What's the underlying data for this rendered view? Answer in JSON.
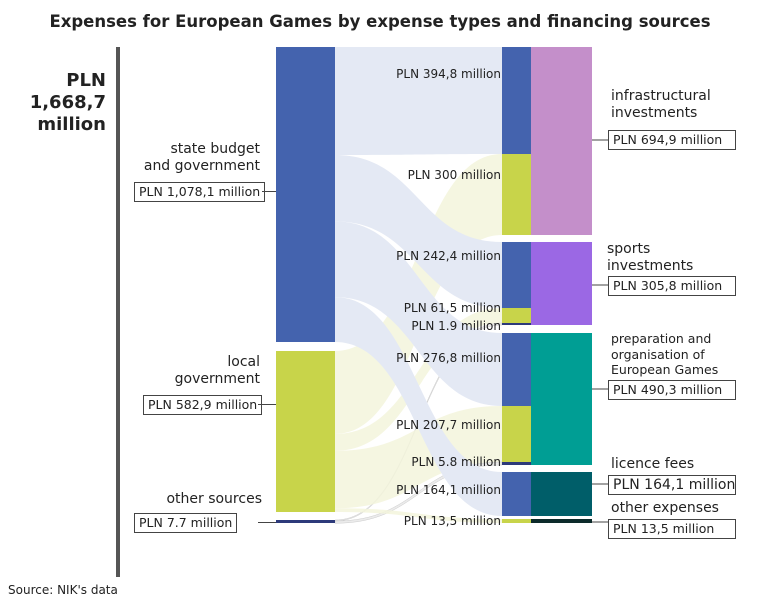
{
  "title": "Expenses for European Games by expense types and financing sources",
  "total": "PLN 1,668,7 million",
  "source": "Source: NIK's data",
  "sources": [
    {
      "label": "state budget and government",
      "value": "PLN 1,078,1 million",
      "amount": 1078.1,
      "color": "#4463ae",
      "flow_color": "#e4e9f4"
    },
    {
      "label": "local government",
      "value": "PLN 582,9 million",
      "amount": 582.9,
      "color": "#c8d44a",
      "flow_color": "#f3f5dc"
    },
    {
      "label": "other sources",
      "value": "PLN 7.7 million",
      "amount": 7.7,
      "color": "#2d3a7a",
      "flow_color": "#e8e8e8"
    }
  ],
  "targets": [
    {
      "label": "infrastructural investments",
      "value": "PLN 694,9 million",
      "color": "#c48fca"
    },
    {
      "label": "sports investments",
      "value": "PLN 305,8 million",
      "color": "#9b68e4"
    },
    {
      "label": "preparation and organisation of European Games",
      "value": "PLN 490,3 million",
      "color": "#009e94"
    },
    {
      "label": "licence fees",
      "value": "PLN 164,1 million",
      "color": "#005e69"
    },
    {
      "label": "other expenses",
      "value": "PLN 13,5 million",
      "color": "#0c2a2a"
    }
  ],
  "flows": [
    {
      "source": 0,
      "target": 0,
      "amount": 394.8,
      "label": "PLN 394,8 million"
    },
    {
      "source": 1,
      "target": 0,
      "amount": 300,
      "label": "PLN 300 million"
    },
    {
      "source": 0,
      "target": 1,
      "amount": 242.4,
      "label": "PLN 242,4 million"
    },
    {
      "source": 1,
      "target": 1,
      "amount": 61.5,
      "label": "PLN 61,5 million"
    },
    {
      "source": 2,
      "target": 1,
      "amount": 1.9,
      "label": "PLN 1.9 million"
    },
    {
      "source": 0,
      "target": 2,
      "amount": 276.8,
      "label": "PLN 276,8 million"
    },
    {
      "source": 1,
      "target": 2,
      "amount": 207.7,
      "label": "PLN 207,7 million"
    },
    {
      "source": 2,
      "target": 2,
      "amount": 5.8,
      "label": "PLN 5.8 million"
    },
    {
      "source": 0,
      "target": 3,
      "amount": 164.1,
      "label": "PLN 164,1 million"
    },
    {
      "source": 1,
      "target": 4,
      "amount": 13.5,
      "label": "PLN 13,5 million"
    }
  ]
}
